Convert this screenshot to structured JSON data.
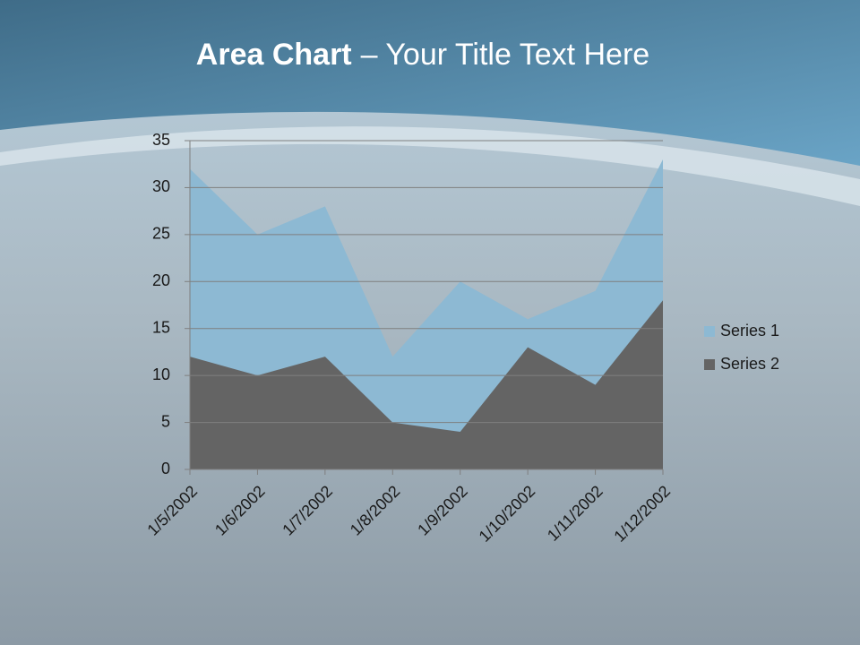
{
  "chart_data": {
    "type": "area",
    "title": {
      "emphasis": "Area Chart",
      "text": "– Your Title Text Here"
    },
    "categories": [
      "1/5/2002",
      "1/6/2002",
      "1/7/2002",
      "1/8/2002",
      "1/9/2002",
      "1/10/2002",
      "1/11/2002",
      "1/12/2002"
    ],
    "series": [
      {
        "name": "Series 1",
        "color": "#8db9d3",
        "values": [
          32,
          25,
          28,
          12,
          20,
          16,
          19,
          33
        ]
      },
      {
        "name": "Series 2",
        "color": "#646464",
        "values": [
          12,
          10,
          12,
          5,
          4,
          13,
          9,
          18
        ]
      }
    ],
    "ylim": [
      0,
      35
    ],
    "yticks": [
      0,
      5,
      10,
      15,
      20,
      25,
      30,
      35
    ],
    "grid": true,
    "legend": "right"
  }
}
